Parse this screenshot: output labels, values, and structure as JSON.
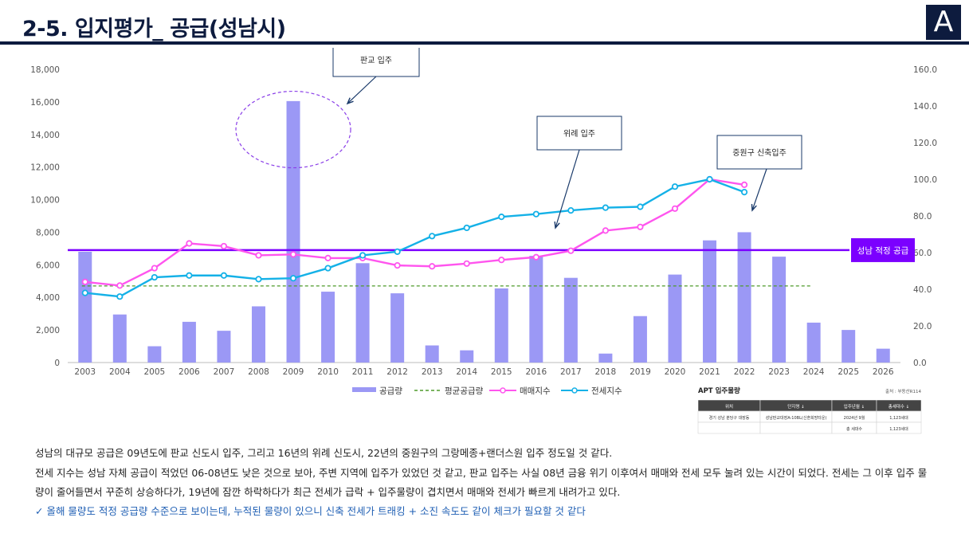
{
  "header": {
    "title": "2-5. 입지평가_ 공급(성남시)",
    "logo_letter": "A"
  },
  "colors": {
    "supply_bar": "#9b98f5",
    "avg_line": "#4e9a2a",
    "sale_index": "#ff55ee",
    "jeonse_index": "#14b1e7",
    "optimal_line": "#7b00ff",
    "navy": "#0d1b3e"
  },
  "chart_data": {
    "type": "bar",
    "categories": [
      "2003",
      "2004",
      "2005",
      "2006",
      "2007",
      "2008",
      "2009",
      "2010",
      "2011",
      "2012",
      "2013",
      "2014",
      "2015",
      "2016",
      "2017",
      "2018",
      "2019",
      "2020",
      "2021",
      "2022",
      "2023",
      "2024",
      "2025",
      "2026"
    ],
    "left_axis": {
      "min": 0,
      "max": 18000,
      "ticks": [
        "0",
        "2,000",
        "4,000",
        "6,000",
        "8,000",
        "10,000",
        "12,000",
        "14,000",
        "16,000",
        "18,000"
      ]
    },
    "right_axis": {
      "min": 0,
      "max": 160,
      "ticks": [
        "0.0",
        "20.0",
        "40.0",
        "60.0",
        "80.0",
        "100.0",
        "120.0",
        "140.0",
        "160.0"
      ]
    },
    "series": [
      {
        "name": "공급량",
        "type": "bar",
        "axis": "left",
        "values": [
          6800,
          2950,
          1000,
          2500,
          1950,
          3450,
          16050,
          4350,
          6100,
          4250,
          1050,
          750,
          4550,
          6550,
          5200,
          550,
          2850,
          5400,
          7500,
          8000,
          6500,
          2450,
          2000,
          850
        ]
      },
      {
        "name": "평균공급량",
        "type": "line-dashed",
        "axis": "left",
        "value": 4700
      },
      {
        "name": "매매지수",
        "type": "line",
        "axis": "right",
        "values": [
          44,
          42,
          51.5,
          65,
          63.5,
          58.5,
          59,
          57,
          57,
          53,
          52.5,
          54,
          56,
          57.5,
          61,
          72,
          74,
          84,
          100,
          97,
          null,
          null,
          null,
          null
        ]
      },
      {
        "name": "전세지수",
        "type": "line",
        "axis": "right",
        "values": [
          38,
          36,
          46.5,
          47.5,
          47.5,
          45.5,
          46,
          51.5,
          58.5,
          60.5,
          69,
          73.5,
          79.5,
          81,
          83,
          84.5,
          85,
          96,
          100,
          93,
          null,
          null,
          null,
          null
        ]
      }
    ],
    "optimal_supply": {
      "label": "성남 적정 공급",
      "value": 6900
    },
    "legend": [
      "공급량",
      "평균공급량",
      "매매지수",
      "전세지수"
    ],
    "annotations": [
      {
        "label": "판교 입주",
        "year": "2009"
      },
      {
        "label": "위례 입주",
        "year": "2016"
      },
      {
        "label": "중원구 신축입주",
        "year": "2022"
      }
    ]
  },
  "apt_table": {
    "title": "APT 입주물량",
    "source": "출처 : 부동산R114",
    "headers": [
      "위치",
      "단지명 ↓",
      "입주년월 ↓",
      "총세대수 ↓"
    ],
    "rows": [
      [
        "경기 성남 분당구 대장동",
        "성남판교대장A-10BL(신혼희망타운)",
        "2024년 9월",
        "1,123세대"
      ],
      [
        "",
        "",
        "총 세대수",
        "1,123세대"
      ]
    ]
  },
  "description": {
    "line1": "성남의 대규모 공급은 09년도에 판교 신도시 입주, 그리고 16년의 위례 신도시, 22년의 중원구의 그랑메종+랜더스원 입주 정도일 것 같다.",
    "line2": "전세 지수는 성남 자체 공급이 적었던 06-08년도 낮은 것으로 보아, 주변 지역에 입주가 있었던 것 같고, 판교 입주는 사실 08년 금융 위기 이후여서 매매와 전세 모두 눌려 있는 시간이 되었다. 전세는 그 이후 입주 물",
    "line3": "량이 줄어들면서 꾸준히 상승하다가, 19년에 잠깐 하락하다가 최근 전세가 급락 + 입주물량이 겹치면서 매매와 전세가 빠르게 내려가고 있다.",
    "line4": "✓  올해 물량도 적정 공급량 수준으로 보이는데, 누적된 물량이 있으니 신축 전세가 트래킹 + 소진 속도도 같이 체크가 필요할 것 같다"
  }
}
